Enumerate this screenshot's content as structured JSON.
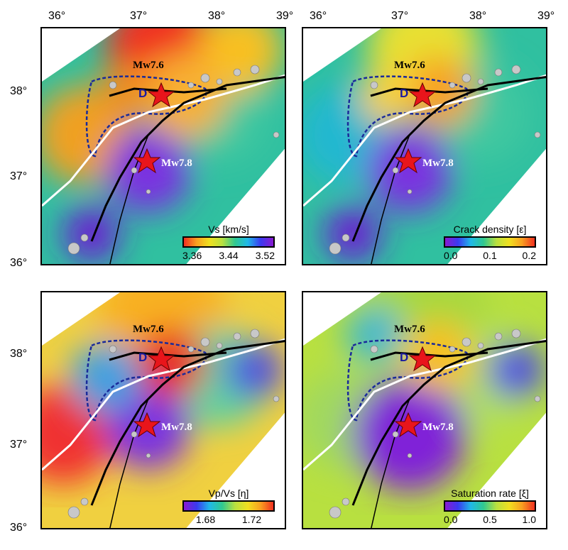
{
  "axes": {
    "lon_ticks": [
      "36°",
      "37°",
      "38°",
      "39°"
    ],
    "lat_ticks": [
      "38°",
      "37°",
      "36°"
    ]
  },
  "events": {
    "north": "Mw7.6",
    "south": "Mw7.8",
    "region_label": "D"
  },
  "panels": [
    {
      "id": "vs",
      "colorbar_title": "Vs [km/s]",
      "colorbar_labels": [
        "3.36",
        "3.44",
        "3.52"
      ],
      "reversed": true
    },
    {
      "id": "crack",
      "colorbar_title": "Crack density [ε]",
      "colorbar_labels": [
        "0.0",
        "0.1",
        "0.2"
      ],
      "reversed": false
    },
    {
      "id": "vpvs",
      "colorbar_title": "Vp/Vs [η]",
      "colorbar_labels": [
        "1.68",
        "1.72"
      ],
      "reversed": false
    },
    {
      "id": "sat",
      "colorbar_title": "Saturation rate [ξ]",
      "colorbar_labels": [
        "0.0",
        "0.5",
        "1.0"
      ],
      "reversed": false
    }
  ],
  "colors": {
    "star": "#e8151b",
    "contour": "#1a2a9a",
    "fault_white": "#ffffff",
    "fault_black": "#000000"
  }
}
